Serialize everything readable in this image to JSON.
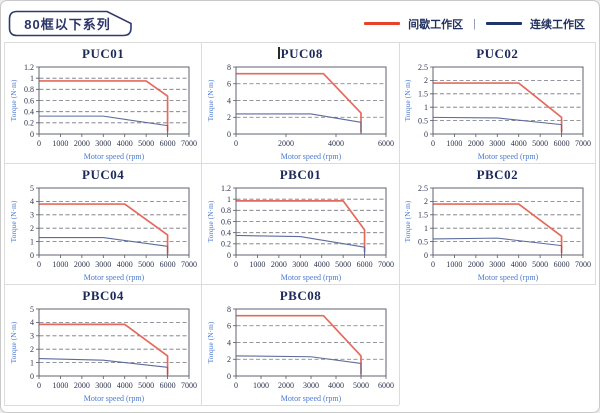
{
  "header": {
    "badge": "80框以下系列",
    "legend": [
      {
        "name": "intermittent-duty-zone",
        "label": "间歇工作区",
        "color": "#e8432a"
      },
      {
        "name": "continuous-duty-zone",
        "label": "连续工作区",
        "color": "#1f3468"
      }
    ],
    "legend_separator": "|"
  },
  "colors": {
    "badge_border": "#2e3a6e",
    "cell_border": "#dcdcdc",
    "plot_border": "#5f6270",
    "gridline": "#73737f",
    "tick_text": "#2e3550",
    "axis_label": "#4a79cf",
    "title_text": "#1c2a5a",
    "curve_red": "#e56a5d",
    "curve_blue": "#5c6c9c"
  },
  "chart_data": [
    {
      "type": "line",
      "title": "PUC01",
      "caret": false,
      "xlabel": "Motor speed (rpm)",
      "ylabel": "Torque (N·m)",
      "xlim": [
        0,
        7000
      ],
      "xticks": [
        0,
        1000,
        2000,
        3000,
        4000,
        5000,
        6000,
        7000
      ],
      "ylim": [
        0,
        1.2
      ],
      "yticks": [
        0,
        0.2,
        0.4,
        0.6,
        0.8,
        1,
        1.2
      ],
      "grid": "dashed-horizontal",
      "legend_position": "none",
      "series": [
        {
          "name": "间歇工作区",
          "color": "#e56a5d",
          "width": 1.7,
          "points": [
            [
              0,
              0.95
            ],
            [
              5000,
              0.95
            ],
            [
              6000,
              0.68
            ],
            [
              6000,
              0.05
            ]
          ]
        },
        {
          "name": "连续工作区",
          "color": "#5c6c9c",
          "width": 1.1,
          "points": [
            [
              0,
              0.32
            ],
            [
              3000,
              0.32
            ],
            [
              6000,
              0.15
            ],
            [
              6000,
              0
            ]
          ]
        }
      ]
    },
    {
      "type": "line",
      "title": "PUC08",
      "caret": true,
      "xlabel": "Motor speed (rpm)",
      "ylabel": "Torque (N·m)",
      "xlim": [
        0,
        6000
      ],
      "xticks": [
        0,
        2000,
        4000,
        6000
      ],
      "ylim": [
        0,
        8
      ],
      "yticks": [
        0,
        2,
        4,
        6,
        8
      ],
      "grid": "dashed-horizontal",
      "legend_position": "none",
      "series": [
        {
          "name": "间歇工作区",
          "color": "#e56a5d",
          "width": 1.7,
          "points": [
            [
              0,
              7.2
            ],
            [
              3500,
              7.2
            ],
            [
              5000,
              2.5
            ],
            [
              5000,
              0.2
            ]
          ]
        },
        {
          "name": "连续工作区",
          "color": "#5c6c9c",
          "width": 1.1,
          "points": [
            [
              0,
              2.4
            ],
            [
              3000,
              2.4
            ],
            [
              5000,
              1.4
            ],
            [
              5000,
              0
            ]
          ]
        }
      ]
    },
    {
      "type": "line",
      "title": "PUC02",
      "caret": false,
      "xlabel": "Motor speed (rpm)",
      "ylabel": "Torque (N·m)",
      "xlim": [
        0,
        7000
      ],
      "xticks": [
        0,
        1000,
        2000,
        3000,
        4000,
        5000,
        6000,
        7000
      ],
      "ylim": [
        0,
        2.5
      ],
      "yticks": [
        0,
        0.5,
        1,
        1.5,
        2,
        2.5
      ],
      "grid": "dashed-horizontal",
      "legend_position": "none",
      "series": [
        {
          "name": "间歇工作区",
          "color": "#e56a5d",
          "width": 1.7,
          "points": [
            [
              0,
              1.9
            ],
            [
              4000,
              1.9
            ],
            [
              6000,
              0.62
            ],
            [
              6000,
              0.08
            ]
          ]
        },
        {
          "name": "连续工作区",
          "color": "#5c6c9c",
          "width": 1.1,
          "points": [
            [
              0,
              0.62
            ],
            [
              3000,
              0.6
            ],
            [
              6000,
              0.35
            ],
            [
              6000,
              0
            ]
          ]
        }
      ]
    },
    {
      "type": "line",
      "title": "PUC04",
      "caret": false,
      "xlabel": "Motor speed (rpm)",
      "ylabel": "Torque (N·m)",
      "xlim": [
        0,
        7000
      ],
      "xticks": [
        0,
        1000,
        2000,
        3000,
        4000,
        5000,
        6000,
        7000
      ],
      "ylim": [
        0,
        5
      ],
      "yticks": [
        0,
        1,
        2,
        3,
        4,
        5
      ],
      "grid": "dashed-horizontal",
      "legend_position": "none",
      "series": [
        {
          "name": "间歇工作区",
          "color": "#e56a5d",
          "width": 1.7,
          "points": [
            [
              0,
              3.8
            ],
            [
              4000,
              3.8
            ],
            [
              6000,
              1.5
            ],
            [
              6000,
              0.1
            ]
          ]
        },
        {
          "name": "连续工作区",
          "color": "#5c6c9c",
          "width": 1.1,
          "points": [
            [
              0,
              1.3
            ],
            [
              3000,
              1.3
            ],
            [
              6000,
              0.65
            ],
            [
              6000,
              0
            ]
          ]
        }
      ]
    },
    {
      "type": "line",
      "title": "PBC01",
      "caret": false,
      "xlabel": "Motor speed (rpm)",
      "ylabel": "Torque (N·m)",
      "xlim": [
        0,
        7000
      ],
      "xticks": [
        0,
        1000,
        2000,
        3000,
        4000,
        5000,
        6000,
        7000
      ],
      "ylim": [
        0,
        1.2
      ],
      "yticks": [
        0,
        0.2,
        0.4,
        0.6,
        0.8,
        1,
        1.2
      ],
      "grid": "dashed-horizontal",
      "legend_position": "none",
      "series": [
        {
          "name": "间歇工作区",
          "color": "#e56a5d",
          "width": 1.7,
          "points": [
            [
              0,
              0.97
            ],
            [
              5000,
              0.97
            ],
            [
              6000,
              0.45
            ],
            [
              6000,
              0.05
            ]
          ]
        },
        {
          "name": "连续工作区",
          "color": "#5c6c9c",
          "width": 1.1,
          "points": [
            [
              0,
              0.35
            ],
            [
              3000,
              0.33
            ],
            [
              6000,
              0.14
            ],
            [
              6000,
              0
            ]
          ]
        }
      ]
    },
    {
      "type": "line",
      "title": "PBC02",
      "caret": false,
      "xlabel": "Motor speed (rpm)",
      "ylabel": "Torque (N·m)",
      "xlim": [
        0,
        7000
      ],
      "xticks": [
        0,
        1000,
        2000,
        3000,
        4000,
        5000,
        6000,
        7000
      ],
      "ylim": [
        0,
        2.5
      ],
      "yticks": [
        0,
        0.5,
        1,
        1.5,
        2,
        2.5
      ],
      "grid": "dashed-horizontal",
      "legend_position": "none",
      "series": [
        {
          "name": "间歇工作区",
          "color": "#e56a5d",
          "width": 1.7,
          "points": [
            [
              0,
              1.9
            ],
            [
              4000,
              1.9
            ],
            [
              6000,
              0.7
            ],
            [
              6000,
              0.08
            ]
          ]
        },
        {
          "name": "连续工作区",
          "color": "#5c6c9c",
          "width": 1.1,
          "points": [
            [
              0,
              0.6
            ],
            [
              3000,
              0.63
            ],
            [
              6000,
              0.35
            ],
            [
              6000,
              0
            ]
          ]
        }
      ]
    },
    {
      "type": "line",
      "title": "PBC04",
      "caret": false,
      "xlabel": "Motor speed (rpm)",
      "ylabel": "Torque (N·m)",
      "xlim": [
        0,
        7000
      ],
      "xticks": [
        0,
        1000,
        2000,
        3000,
        4000,
        5000,
        6000,
        7000
      ],
      "ylim": [
        0,
        5
      ],
      "yticks": [
        0,
        1,
        2,
        3,
        4,
        5
      ],
      "grid": "dashed-horizontal",
      "legend_position": "none",
      "series": [
        {
          "name": "间歇工作区",
          "color": "#e56a5d",
          "width": 1.7,
          "points": [
            [
              0,
              3.85
            ],
            [
              4000,
              3.85
            ],
            [
              6000,
              1.5
            ],
            [
              6000,
              0.1
            ]
          ]
        },
        {
          "name": "连续工作区",
          "color": "#5c6c9c",
          "width": 1.1,
          "points": [
            [
              0,
              1.3
            ],
            [
              3000,
              1.18
            ],
            [
              6000,
              0.65
            ],
            [
              6000,
              0
            ]
          ]
        }
      ]
    },
    {
      "type": "line",
      "title": "PBC08",
      "caret": false,
      "xlabel": "Motor speed (rpm)",
      "ylabel": "Torque (N·m)",
      "xlim": [
        0,
        6000
      ],
      "xticks": [
        0,
        1000,
        2000,
        3000,
        4000,
        5000,
        6000
      ],
      "ylim": [
        0,
        8
      ],
      "yticks": [
        0,
        2,
        4,
        6,
        8
      ],
      "grid": "dashed-horizontal",
      "legend_position": "none",
      "series": [
        {
          "name": "间歇工作区",
          "color": "#e56a5d",
          "width": 1.7,
          "points": [
            [
              0,
              7.2
            ],
            [
              3500,
              7.2
            ],
            [
              5000,
              2.4
            ],
            [
              5000,
              0.2
            ]
          ]
        },
        {
          "name": "连续工作区",
          "color": "#5c6c9c",
          "width": 1.1,
          "points": [
            [
              0,
              2.4
            ],
            [
              3000,
              2.3
            ],
            [
              5000,
              1.5
            ],
            [
              5000,
              0
            ]
          ]
        }
      ]
    }
  ]
}
